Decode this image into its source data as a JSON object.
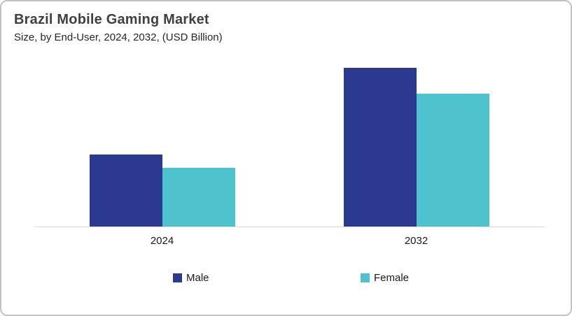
{
  "header": {
    "title": "Brazil Mobile Gaming Market",
    "subtitle": "Size, by End-User, 2024, 2032, (USD Billion)"
  },
  "chart_data": {
    "type": "bar",
    "title": "Brazil Mobile Gaming Market",
    "subtitle": "Size, by End-User, 2024, 2032, (USD Billion)",
    "categories": [
      "2024",
      "2032"
    ],
    "series": [
      {
        "name": "Male",
        "color": "#2B3990",
        "values": [
          0.454,
          1.0
        ]
      },
      {
        "name": "Female",
        "color": "#4EC3CD",
        "values": [
          0.37,
          0.837
        ]
      }
    ],
    "xlabel": "",
    "ylabel": "",
    "ylim": [
      0,
      1.0
    ],
    "value_axis_visible": false,
    "gridlines": false,
    "legend_position": "bottom",
    "note_units": "USD Billion (no value axis shown; values are relative bar heights, 2032 Male = 1.0)"
  },
  "colors": {
    "male": "#2B3990",
    "female": "#4EC3CD",
    "axis_line": "#d9d9d9",
    "card_border": "#c3c3c3",
    "title_text": "#404040"
  }
}
